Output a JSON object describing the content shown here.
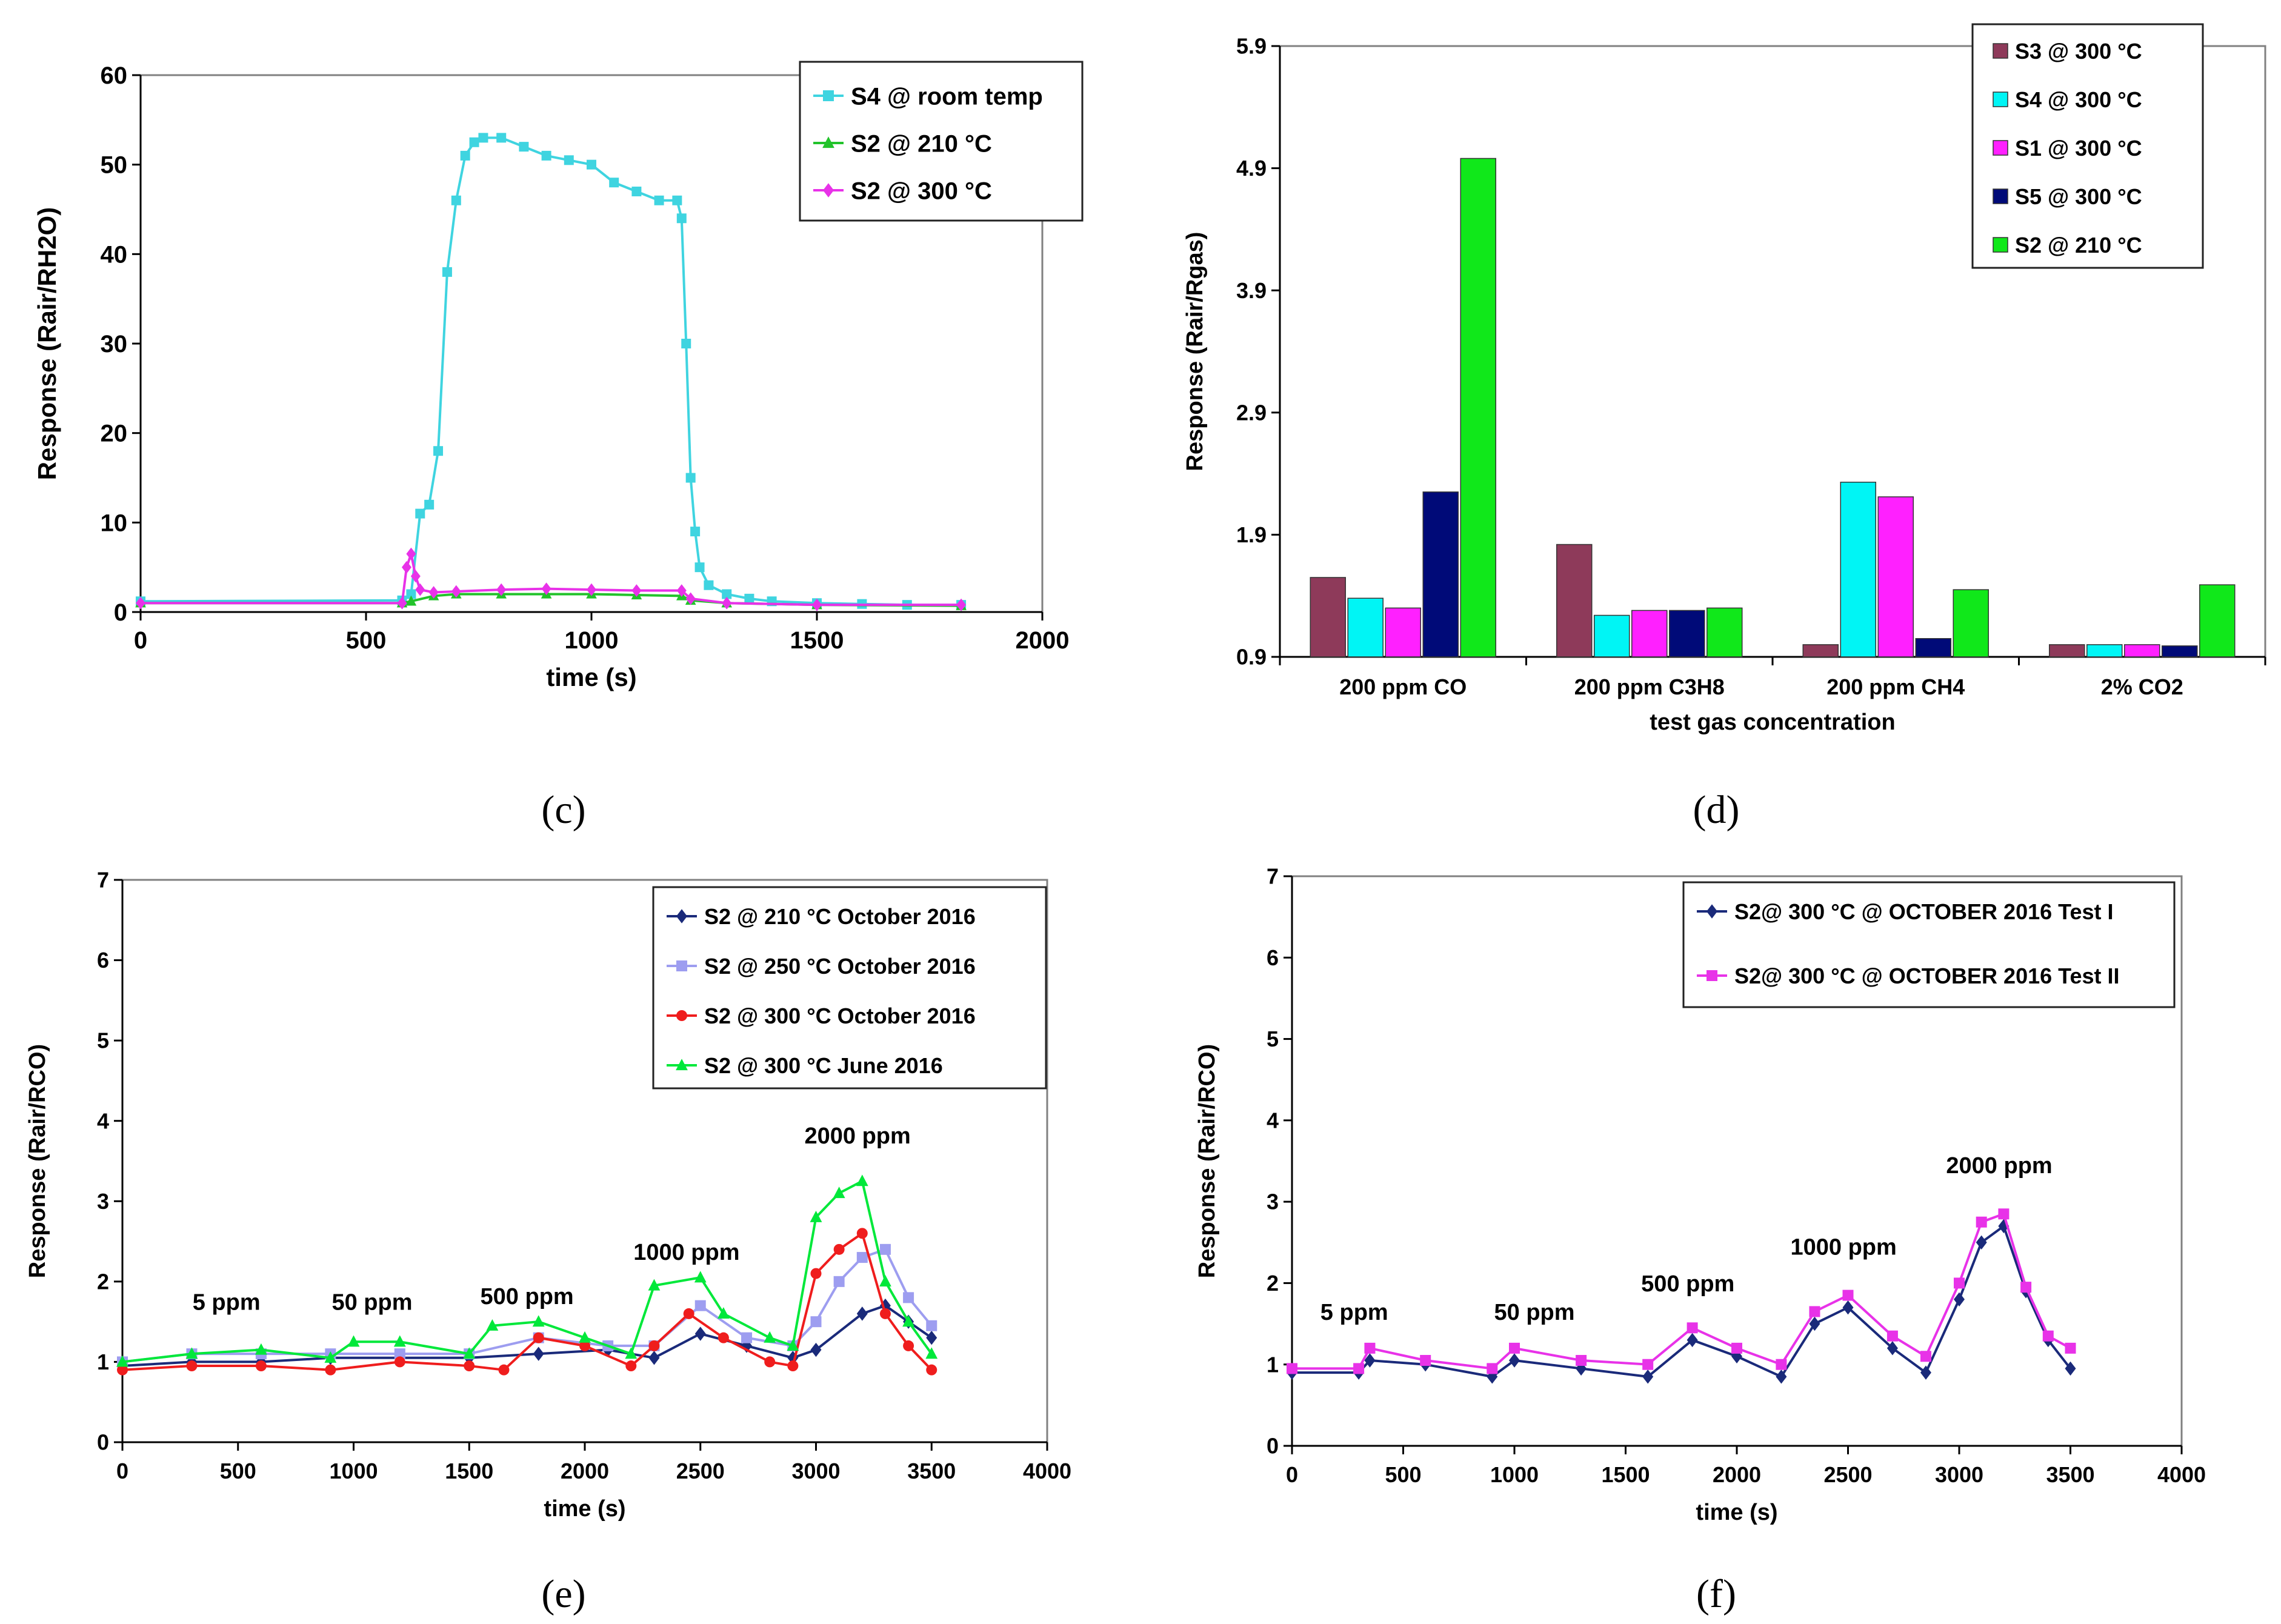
{
  "captions": {
    "c": "(c)",
    "d": "(d)",
    "e": "(e)",
    "f": "(f)"
  },
  "colors": {
    "cyan": "#3fd4e0",
    "green": "#22c32b",
    "magenta": "#e832e8",
    "navy": "#1a2a7a",
    "lavender": "#9d9df0",
    "red": "#ef1d1d",
    "lime": "#00e83a",
    "maroon": "#8e3a5a",
    "bar_cyan": "#00f5f5",
    "bar_magenta": "#ff20ff",
    "bar_navy": "#000a78",
    "bar_green": "#10e81a"
  },
  "chart_data": [
    {
      "id": "c",
      "type": "line",
      "xlabel": "time (s)",
      "ylabel": "Response (Rair/RH2O)",
      "xlim": [
        0,
        2000
      ],
      "ylim": [
        0,
        60
      ],
      "xticks": [
        0,
        500,
        1000,
        1500,
        2000
      ],
      "yticks": [
        0,
        10,
        20,
        30,
        40,
        50,
        60
      ],
      "legend_position": "top-right",
      "series": [
        {
          "name": "S4 @ room temp",
          "color": "#3fd4e0",
          "marker": "square",
          "x": [
            0,
            580,
            600,
            620,
            640,
            660,
            680,
            700,
            720,
            740,
            760,
            800,
            850,
            900,
            950,
            1000,
            1050,
            1100,
            1150,
            1190,
            1200,
            1210,
            1220,
            1230,
            1240,
            1260,
            1300,
            1350,
            1400,
            1500,
            1600,
            1700,
            1820
          ],
          "y": [
            1.2,
            1.3,
            2,
            11,
            12,
            18,
            38,
            46,
            51,
            52.5,
            53,
            53,
            52,
            51,
            50.5,
            50,
            48,
            47,
            46,
            46,
            44,
            30,
            15,
            9,
            5,
            3,
            2,
            1.5,
            1.2,
            1,
            0.9,
            0.8,
            0.8
          ]
        },
        {
          "name": "S2 @ 210 °C",
          "color": "#22c32b",
          "marker": "triangle",
          "x": [
            0,
            580,
            600,
            650,
            700,
            800,
            900,
            1000,
            1100,
            1200,
            1220,
            1300,
            1500,
            1820
          ],
          "y": [
            1,
            1,
            1.2,
            1.8,
            2,
            2,
            2,
            2,
            1.9,
            1.8,
            1.3,
            1,
            0.8,
            0.7
          ]
        },
        {
          "name": "S2 @ 300 °C",
          "color": "#e832e8",
          "marker": "diamond",
          "x": [
            0,
            580,
            590,
            600,
            610,
            620,
            650,
            700,
            800,
            900,
            1000,
            1100,
            1200,
            1220,
            1300,
            1500,
            1820
          ],
          "y": [
            1,
            1,
            5,
            6.5,
            4,
            2.5,
            2.2,
            2.3,
            2.5,
            2.6,
            2.5,
            2.4,
            2.4,
            1.5,
            1,
            0.8,
            0.8
          ]
        }
      ]
    },
    {
      "id": "d",
      "type": "bar",
      "xlabel": "test gas concentration",
      "ylabel": "Response (Rair/Rgas)",
      "ylim": [
        0.9,
        5.9
      ],
      "yticks": [
        0.9,
        1.9,
        2.9,
        3.9,
        4.9,
        5.9
      ],
      "ytick_labels": [
        "0.9",
        "1.9",
        "2.9",
        "3.9",
        "4.9",
        "5.9"
      ],
      "categories": [
        "200 ppm CO",
        "200 ppm C3H8",
        "200 ppm CH4",
        "2% CO2"
      ],
      "legend_position": "top-right",
      "series": [
        {
          "name": "S3 @ 300 °C",
          "color": "#8e3a5a",
          "values": [
            1.55,
            1.82,
            1.0,
            1.0
          ]
        },
        {
          "name": "S4 @ 300 °C",
          "color": "#00f5f5",
          "values": [
            1.38,
            1.24,
            2.33,
            1.0
          ]
        },
        {
          "name": "S1 @ 300 °C",
          "color": "#ff20ff",
          "values": [
            1.3,
            1.28,
            2.21,
            1.0
          ]
        },
        {
          "name": "S5 @ 300 °C",
          "color": "#000a78",
          "values": [
            2.25,
            1.28,
            1.05,
            0.99
          ]
        },
        {
          "name": "S2 @ 210 °C",
          "color": "#10e81a",
          "values": [
            4.98,
            1.3,
            1.45,
            1.49
          ]
        }
      ]
    },
    {
      "id": "e",
      "type": "scatter",
      "xlabel": "time (s)",
      "ylabel": "Response (Rair/RCO)",
      "xlim": [
        0,
        4000
      ],
      "ylim": [
        0,
        7
      ],
      "xticks": [
        0,
        500,
        1000,
        1500,
        2000,
        2500,
        3000,
        3500,
        4000
      ],
      "yticks": [
        0,
        1,
        2,
        3,
        4,
        5,
        6,
        7
      ],
      "legend_position": "top-right",
      "annotations": [
        {
          "text": "5 ppm",
          "x": 450,
          "y": 1.65
        },
        {
          "text": "50 ppm",
          "x": 1080,
          "y": 1.65
        },
        {
          "text": "500 ppm",
          "x": 1750,
          "y": 1.72
        },
        {
          "text": "1000 ppm",
          "x": 2440,
          "y": 2.27
        },
        {
          "text": "2000 ppm",
          "x": 3180,
          "y": 3.72
        }
      ],
      "series": [
        {
          "name": "S2 @ 210 °C October 2016",
          "color": "#1a2a7a",
          "marker": "diamond",
          "x": [
            0,
            300,
            600,
            900,
            1200,
            1500,
            1800,
            2100,
            2300,
            2500,
            2700,
            2900,
            3000,
            3200,
            3300,
            3400,
            3500
          ],
          "y": [
            0.95,
            1.0,
            1.0,
            1.05,
            1.05,
            1.05,
            1.1,
            1.15,
            1.05,
            1.35,
            1.2,
            1.05,
            1.15,
            1.6,
            1.7,
            1.5,
            1.3
          ]
        },
        {
          "name": "S2 @ 250 °C October 2016",
          "color": "#9d9df0",
          "marker": "square",
          "x": [
            0,
            300,
            600,
            900,
            1200,
            1500,
            1800,
            2100,
            2300,
            2500,
            2700,
            2900,
            3000,
            3100,
            3200,
            3300,
            3400,
            3500
          ],
          "y": [
            1.0,
            1.1,
            1.1,
            1.1,
            1.1,
            1.1,
            1.3,
            1.2,
            1.2,
            1.7,
            1.3,
            1.2,
            1.5,
            2.0,
            2.3,
            2.4,
            1.8,
            1.45
          ]
        },
        {
          "name": "S2 @ 300 °C October 2016",
          "color": "#ef1d1d",
          "marker": "circle",
          "x": [
            0,
            300,
            600,
            900,
            1200,
            1500,
            1650,
            1800,
            2000,
            2200,
            2300,
            2450,
            2600,
            2800,
            2900,
            3000,
            3100,
            3200,
            3300,
            3400,
            3500
          ],
          "y": [
            0.9,
            0.95,
            0.95,
            0.9,
            1.0,
            0.95,
            0.9,
            1.3,
            1.2,
            0.95,
            1.2,
            1.6,
            1.3,
            1.0,
            0.95,
            2.1,
            2.4,
            2.6,
            1.6,
            1.2,
            0.9
          ]
        },
        {
          "name": "S2 @ 300 °C June 2016",
          "color": "#00e83a",
          "marker": "triangle",
          "x": [
            0,
            300,
            600,
            900,
            1000,
            1200,
            1500,
            1600,
            1800,
            2000,
            2200,
            2300,
            2500,
            2600,
            2800,
            2900,
            3000,
            3100,
            3200,
            3300,
            3400,
            3500
          ],
          "y": [
            1.0,
            1.1,
            1.15,
            1.05,
            1.25,
            1.25,
            1.1,
            1.45,
            1.5,
            1.3,
            1.1,
            1.95,
            2.05,
            1.6,
            1.3,
            1.2,
            2.8,
            3.1,
            3.25,
            2.0,
            1.5,
            1.1
          ]
        }
      ]
    },
    {
      "id": "f",
      "type": "scatter",
      "xlabel": "time (s)",
      "ylabel": "Response (Rair/RCO)",
      "xlim": [
        0,
        4000
      ],
      "ylim": [
        0,
        7
      ],
      "xticks": [
        0,
        500,
        1000,
        1500,
        2000,
        2500,
        3000,
        3500,
        4000
      ],
      "yticks": [
        0,
        1,
        2,
        3,
        4,
        5,
        6,
        7
      ],
      "legend_position": "top-right",
      "annotations": [
        {
          "text": "5 ppm",
          "x": 280,
          "y": 1.55
        },
        {
          "text": "50 ppm",
          "x": 1090,
          "y": 1.55
        },
        {
          "text": "500 ppm",
          "x": 1780,
          "y": 1.9
        },
        {
          "text": "1000 ppm",
          "x": 2480,
          "y": 2.35
        },
        {
          "text": "2000 ppm",
          "x": 3180,
          "y": 3.35
        }
      ],
      "series": [
        {
          "name": "S2@ 300 °C @ OCTOBER 2016 Test I",
          "color": "#1a2a7a",
          "marker": "diamond",
          "x": [
            0,
            300,
            350,
            600,
            900,
            1000,
            1300,
            1600,
            1800,
            2000,
            2200,
            2350,
            2500,
            2700,
            2850,
            3000,
            3100,
            3200,
            3300,
            3400,
            3500
          ],
          "y": [
            0.9,
            0.9,
            1.05,
            1.0,
            0.85,
            1.05,
            0.95,
            0.85,
            1.3,
            1.1,
            0.85,
            1.5,
            1.7,
            1.2,
            0.9,
            1.8,
            2.5,
            2.7,
            1.9,
            1.3,
            0.95
          ]
        },
        {
          "name": "S2@ 300 °C @ OCTOBER 2016 Test II",
          "color": "#e832e8",
          "marker": "square",
          "x": [
            0,
            300,
            350,
            600,
            900,
            1000,
            1300,
            1600,
            1800,
            2000,
            2200,
            2350,
            2500,
            2700,
            2850,
            3000,
            3100,
            3200,
            3300,
            3400,
            3500
          ],
          "y": [
            0.95,
            0.95,
            1.2,
            1.05,
            0.95,
            1.2,
            1.05,
            1.0,
            1.45,
            1.2,
            1.0,
            1.65,
            1.85,
            1.35,
            1.1,
            2.0,
            2.75,
            2.85,
            1.95,
            1.35,
            1.2
          ]
        }
      ]
    }
  ]
}
